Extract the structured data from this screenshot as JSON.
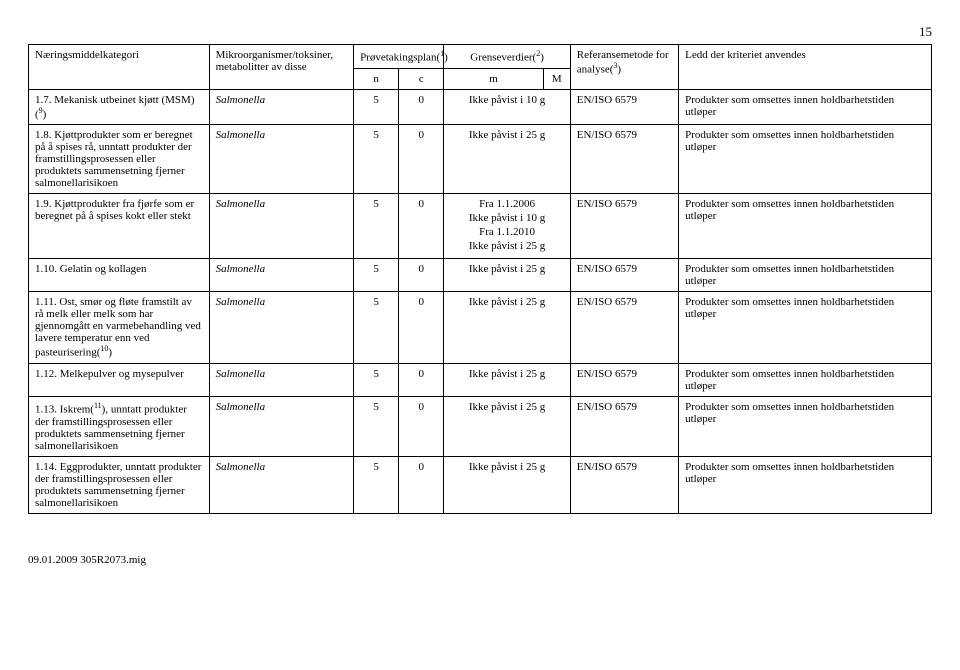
{
  "page_number": "15",
  "footer_text": "09.01.2009   305R2073.mig",
  "headers": {
    "cat": "Næringsmiddelkategori",
    "mikro": "Mikroorganismer/toksiner, metabolitter av disse",
    "plan": "Prøvetakingsplan(",
    "plan_sup": "1",
    "plan_end": ")",
    "grense": "Grenseverdier(",
    "grense_sup": "2",
    "grense_end": ")",
    "ref": "Referansemetode for analyse(",
    "ref_sup": "3",
    "ref_end": ")",
    "ledd": "Ledd der kriteriet anvendes",
    "n": "n",
    "c": "c",
    "m": "m",
    "M": "M"
  },
  "rows": [
    {
      "num": "1.7.",
      "cat": "Mekanisk utbeinet kjøtt (MSM)(",
      "cat_sup": "9",
      "cat_end": ")",
      "mikro": "Salmonella",
      "n": "5",
      "c": "0",
      "m": "Ikke påvist i 10 g",
      "M": "",
      "ref": "EN/ISO 6579",
      "ledd": "Produkter som omsettes innen holdbarhetstiden utløper"
    },
    {
      "num": "1.8.",
      "cat": "Kjøttprodukter som er beregnet på å spises rå, unntatt produkter der framstillingsprosessen eller produktets sammensetning fjerner salmonellarisikoen",
      "mikro": "Salmonella",
      "n": "5",
      "c": "0",
      "m": "Ikke påvist i 25 g",
      "M": "",
      "ref": "EN/ISO 6579",
      "ledd": "Produkter som omsettes innen holdbarhetstiden utløper"
    },
    {
      "num": "1.9.",
      "cat": "Kjøttprodukter fra fjørfe som er beregnet på å spises kokt eller stekt",
      "mikro": "Salmonella",
      "n": "5",
      "c": "0",
      "m_lines": [
        "Fra 1.1.2006",
        "Ikke påvist i 10 g",
        "Fra 1.1.2010",
        "Ikke påvist i 25 g"
      ],
      "M": "",
      "ref": "EN/ISO 6579",
      "ledd": "Produkter som omsettes innen holdbarhetstiden utløper"
    },
    {
      "num": "1.10.",
      "cat": "Gelatin og kollagen",
      "mikro": "Salmonella",
      "n": "5",
      "c": "0",
      "m": "Ikke påvist i 25 g",
      "M": "",
      "ref": "EN/ISO 6579",
      "ledd": "Produkter som omsettes innen holdbarhetstiden utløper"
    },
    {
      "num": "1.11.",
      "cat": "Ost, smør og fløte framstilt av rå melk eller melk som har gjennomgått en varmebehandling ved lavere temperatur enn ved pasteurisering(",
      "cat_sup": "10",
      "cat_end": ")",
      "mikro": "Salmonella",
      "n": "5",
      "c": "0",
      "m": "Ikke påvist i 25 g",
      "M": "",
      "ref": "EN/ISO 6579",
      "ledd": "Produkter som omsettes innen holdbarhetstiden utløper"
    },
    {
      "num": "1.12.",
      "cat": "Melkepulver og mysepulver",
      "mikro": "Salmonella",
      "n": "5",
      "c": "0",
      "m": "Ikke påvist i 25 g",
      "M": "",
      "ref": "EN/ISO 6579",
      "ledd": "Produkter som omsettes innen holdbarhetstiden utløper"
    },
    {
      "num": "1.13.",
      "cat_pre": "Iskrem(",
      "cat_sup": "11",
      "cat_post": "), unntatt produkter der framstillingsprosessen eller produktets sammensetning fjerner salmonellarisikoen",
      "mikro": "Salmonella",
      "n": "5",
      "c": "0",
      "m": "Ikke påvist i 25 g",
      "M": "",
      "ref": "EN/ISO 6579",
      "ledd": "Produkter som omsettes innen holdbarhetstiden utløper"
    },
    {
      "num": "1.14.",
      "cat": "Eggprodukter, unntatt produkter der framstillingsprosessen eller produktets sammensetning fjerner salmonellarisikoen",
      "mikro": "Salmonella",
      "n": "5",
      "c": "0",
      "m": "Ikke påvist i 25 g",
      "M": "",
      "ref": "EN/ISO 6579",
      "ledd": "Produkter som omsettes innen holdbarhetstiden utløper"
    }
  ]
}
